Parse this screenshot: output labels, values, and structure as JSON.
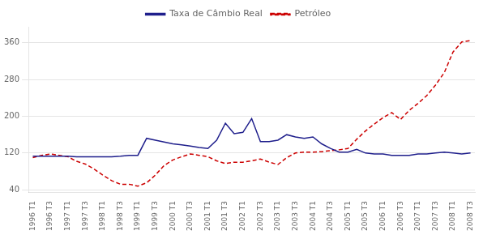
{
  "chart_data": {
    "type": "line",
    "categories": [
      "1996 T1",
      null,
      "1996 T3",
      null,
      "1997 T1",
      null,
      "1997 T3",
      null,
      "1998 T1",
      null,
      "1998 T3",
      null,
      "1999 T1",
      null,
      "1999 T3",
      null,
      "2000 T1",
      null,
      "2000 T3",
      null,
      "2001 T1",
      null,
      "2001 T3",
      null,
      "2002 T1",
      null,
      "2002 T3",
      null,
      "2003 T1",
      null,
      "2003 T3",
      null,
      "2004 T1",
      null,
      "2004 T3",
      null,
      "2005 T1",
      null,
      "2005 T3",
      null,
      "2006 T1",
      null,
      "2006 T3",
      null,
      "2007 T1",
      null,
      "2007 T3",
      null,
      "2008 T1",
      null,
      "2008 T3"
    ],
    "series": [
      {
        "name": "Taxa de Câmbio Real",
        "color": "#1f1f8c",
        "line_style": "solid",
        "values": [
          113,
          113,
          113,
          113,
          113,
          112,
          112,
          112,
          112,
          112,
          113,
          115,
          115,
          152,
          148,
          144,
          140,
          138,
          135,
          132,
          130,
          148,
          185,
          162,
          165,
          195,
          145,
          145,
          148,
          160,
          155,
          152,
          155,
          140,
          130,
          122,
          122,
          128,
          120,
          118,
          118,
          115,
          115,
          115,
          118,
          118,
          120,
          122,
          120,
          118,
          120
        ]
      },
      {
        "name": "Petróleo",
        "color": "#cc0000",
        "line_style": "dashed",
        "values": [
          110,
          115,
          118,
          115,
          112,
          102,
          96,
          85,
          72,
          60,
          52,
          52,
          48,
          55,
          72,
          93,
          105,
          112,
          118,
          115,
          112,
          103,
          97,
          100,
          100,
          103,
          107,
          100,
          95,
          110,
          120,
          122,
          122,
          123,
          125,
          127,
          130,
          150,
          168,
          183,
          197,
          208,
          193,
          213,
          228,
          245,
          268,
          295,
          340,
          362,
          365
        ]
      }
    ],
    "ylim": [
      35,
      395
    ],
    "yticks": [
      40,
      120,
      200,
      280,
      360
    ],
    "grid": true,
    "legend": "top"
  }
}
